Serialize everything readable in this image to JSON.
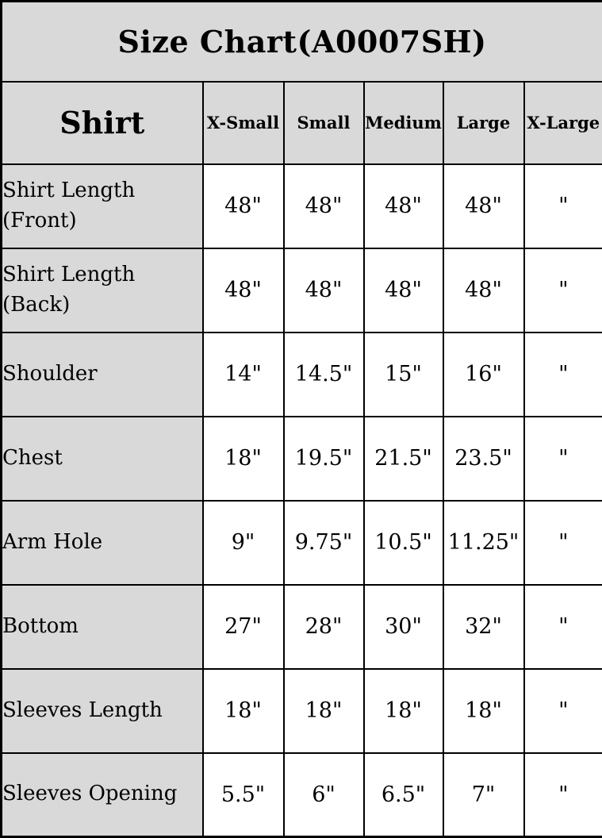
{
  "chart_data": {
    "type": "table",
    "title": "Size Chart(A0007SH)",
    "corner_label": "Shirt",
    "columns": [
      "X-Small",
      "Small",
      "Medium",
      "Large",
      "X-Large"
    ],
    "rows": [
      {
        "label": "Shirt Length (Front)",
        "values": [
          "48\"",
          "48\"",
          "48\"",
          "48\"",
          "\""
        ]
      },
      {
        "label": "Shirt Length (Back)",
        "values": [
          "48\"",
          "48\"",
          "48\"",
          "48\"",
          "\""
        ]
      },
      {
        "label": "Shoulder",
        "values": [
          "14\"",
          "14.5\"",
          "15\"",
          "16\"",
          "\""
        ]
      },
      {
        "label": "Chest",
        "values": [
          "18\"",
          "19.5\"",
          "21.5\"",
          "23.5\"",
          "\""
        ]
      },
      {
        "label": "Arm Hole",
        "values": [
          "9\"",
          "9.75\"",
          "10.5\"",
          "11.25\"",
          "\""
        ]
      },
      {
        "label": "Bottom",
        "values": [
          "27\"",
          "28\"",
          "30\"",
          "32\"",
          "\""
        ]
      },
      {
        "label": "Sleeves Length",
        "values": [
          "18\"",
          "18\"",
          "18\"",
          "18\"",
          "\""
        ]
      },
      {
        "label": "Sleeves Opening",
        "values": [
          "5.5\"",
          "6\"",
          "6.5\"",
          "7\"",
          "\""
        ]
      }
    ],
    "layout": {
      "grid": "on",
      "header_position": "top-and-left"
    },
    "colors": {
      "header_bg": "#d9d9d9",
      "cell_bg": "#ffffff",
      "border": "#000000",
      "text": "#000000"
    }
  }
}
